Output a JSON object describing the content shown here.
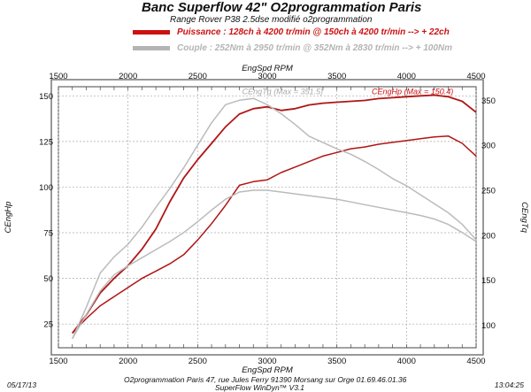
{
  "header": {
    "title": "Banc Superflow 42\" O2programmation Paris",
    "subtitle": "Range Rover P38 2.5dse modifié o2programmation"
  },
  "legend": [
    {
      "text": "Puissance : 128ch à 4200 tr/min @ 150ch à 4200 tr/min --> + 22ch",
      "color": "#cc1111"
    },
    {
      "text": "Couple : 252Nm à 2950 tr/min @ 352Nm à 2830 tr/min --> + 100Nm",
      "color": "#b4b4b4"
    }
  ],
  "footer": {
    "date": "05/17/13",
    "time": "13:04:25",
    "line1": "O2programmation Paris 47, rue Jules Ferry 91390 Morsang sur Orge 01.69.46.01.36",
    "line2": "SuperFlow WinDyn™ V3.1"
  },
  "chart_data": {
    "type": "line",
    "xlabel": "EngSpd RPM",
    "ylabel_left": "CEngHp",
    "ylabel_right": "CEngTq",
    "xlim": [
      1500,
      4500
    ],
    "ylim_left": [
      12,
      155
    ],
    "ylim_right": [
      75,
      365
    ],
    "x_ticks": [
      1500,
      2000,
      2500,
      3000,
      3500,
      4000,
      4500
    ],
    "y_ticks_left": [
      25,
      50,
      75,
      100,
      125,
      150
    ],
    "y_ticks_right": [
      100,
      150,
      200,
      250,
      300,
      350
    ],
    "grid": true,
    "annotations": [
      {
        "text": "CEngTq (Max = 351.5)",
        "color": "#aaaaaa",
        "x": 2820,
        "y": 150.8
      },
      {
        "text": "CEngHp (Max = 150.4)",
        "color": "#cc1111",
        "x": 3750,
        "y": 150.8
      }
    ],
    "series": [
      {
        "axis": "left",
        "color": "#b01515",
        "width": 1.8,
        "x": [
          1600,
          1700,
          1800,
          1900,
          2000,
          2100,
          2200,
          2300,
          2400,
          2500,
          2600,
          2700,
          2800,
          2900,
          3000,
          3100,
          3200,
          3300,
          3400,
          3500,
          3600,
          3700,
          3800,
          3900,
          4000,
          4100,
          4200,
          4300,
          4400,
          4500
        ],
        "y": [
          20,
          30,
          42,
          50,
          57,
          66,
          77,
          92,
          105,
          115,
          124,
          133,
          140,
          143,
          144,
          142,
          143,
          145,
          146,
          146.5,
          147,
          147.5,
          148.5,
          149,
          149.5,
          150,
          150.4,
          149.5,
          147,
          141
        ]
      },
      {
        "axis": "left",
        "color": "#b01515",
        "width": 1.5,
        "x": [
          1600,
          1700,
          1800,
          1900,
          2000,
          2100,
          2200,
          2300,
          2400,
          2500,
          2600,
          2700,
          2800,
          2900,
          3000,
          3100,
          3200,
          3300,
          3400,
          3500,
          3600,
          3700,
          3800,
          3900,
          4000,
          4100,
          4200,
          4300,
          4400,
          4500
        ],
        "y": [
          20,
          28,
          35,
          40,
          45,
          50,
          54,
          58,
          63,
          71,
          80,
          90,
          101,
          103,
          104,
          108,
          111,
          114,
          117,
          119,
          121,
          122,
          123.5,
          124.5,
          125.5,
          126.5,
          127.5,
          128,
          124,
          117
        ]
      },
      {
        "axis": "right",
        "color": "#bbbbbb",
        "width": 1.5,
        "x": [
          1600,
          1700,
          1800,
          1900,
          2000,
          2100,
          2200,
          2300,
          2400,
          2500,
          2600,
          2700,
          2800,
          2900,
          3000,
          3100,
          3200,
          3300,
          3400,
          3500,
          3600,
          3700,
          3800,
          3900,
          4000,
          4100,
          4200,
          4300,
          4400,
          4500
        ],
        "y": [
          85,
          120,
          158,
          176,
          190,
          209,
          231,
          252,
          275,
          300,
          325,
          345,
          350,
          352,
          345,
          335,
          323,
          310,
          303,
          296,
          290,
          282,
          273,
          263,
          255,
          245,
          235,
          225,
          212,
          195
        ]
      },
      {
        "axis": "right",
        "color": "#bbbbbb",
        "width": 1.5,
        "x": [
          1600,
          1700,
          1800,
          1900,
          2000,
          2100,
          2200,
          2300,
          2400,
          2500,
          2600,
          2700,
          2800,
          2900,
          3000,
          3100,
          3200,
          3300,
          3400,
          3500,
          3600,
          3700,
          3800,
          3900,
          4000,
          4100,
          4200,
          4300,
          4400,
          4500
        ],
        "y": [
          85,
          112,
          138,
          156,
          166,
          175,
          184,
          193,
          203,
          215,
          228,
          240,
          248,
          250,
          250,
          248,
          246,
          244,
          242,
          240,
          237,
          234,
          231,
          228,
          225,
          222,
          218,
          212,
          203,
          193
        ]
      }
    ]
  }
}
